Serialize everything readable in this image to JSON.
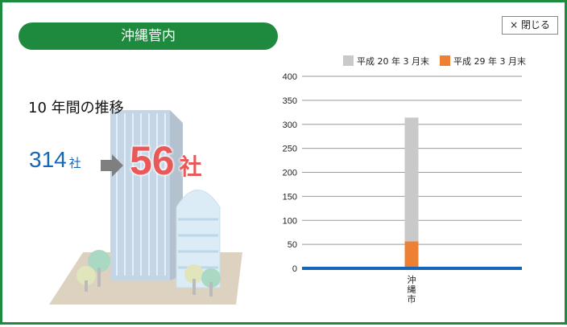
{
  "panel": {
    "title": "沖縄菅内",
    "close_label": "× 閉じる"
  },
  "summary": {
    "heading": "10 年間の推移",
    "before_value": "314",
    "before_unit": "社",
    "after_value": "56",
    "after_unit": "社"
  },
  "chart_data": {
    "type": "bar",
    "categories": [
      "沖縄市"
    ],
    "series": [
      {
        "name": "平成 20 年 3 月末",
        "values": [
          314
        ],
        "color": "#c8c9c8"
      },
      {
        "name": "平成 29 年 3 月末",
        "values": [
          56
        ],
        "color": "#ee8034"
      }
    ],
    "ylim": [
      0,
      400
    ],
    "yticks": [
      0,
      50,
      100,
      150,
      200,
      250,
      300,
      350,
      400
    ],
    "grid": true,
    "legend": "top",
    "overlapped": true,
    "axis_color": "#1565b8"
  }
}
